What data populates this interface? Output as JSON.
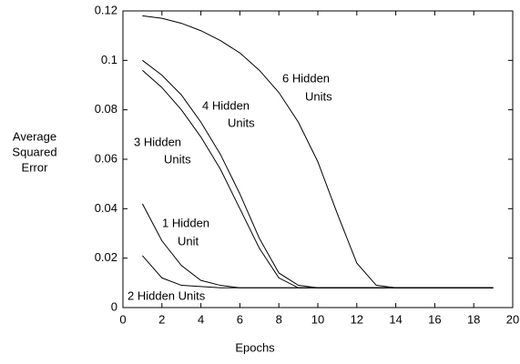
{
  "chart_data": {
    "type": "line",
    "xlabel": "Epochs",
    "ylabel": [
      "Average",
      "Squared",
      "Error"
    ],
    "xlim": [
      0,
      20
    ],
    "ylim": [
      0,
      0.12
    ],
    "xticks": [
      0,
      2,
      4,
      6,
      8,
      10,
      12,
      14,
      16,
      18,
      20
    ],
    "yticks": [
      0,
      0.02,
      0.04,
      0.06,
      0.08,
      0.1,
      0.12
    ],
    "x": [
      1,
      2,
      3,
      4,
      5,
      6,
      7,
      8,
      9,
      10,
      11,
      12,
      13,
      14,
      15,
      16,
      17,
      18,
      19
    ],
    "series": [
      {
        "label": [
          "6 Hidden",
          "Units"
        ],
        "color": "#000000",
        "values": [
          0.118,
          0.117,
          0.115,
          0.112,
          0.108,
          0.103,
          0.096,
          0.087,
          0.075,
          0.059,
          0.038,
          0.018,
          0.009,
          0.008,
          0.008,
          0.008,
          0.008,
          0.008,
          0.008
        ]
      },
      {
        "label": [
          "4 Hidden",
          "Units"
        ],
        "color": "#000000",
        "values": [
          0.1,
          0.094,
          0.086,
          0.075,
          0.062,
          0.046,
          0.028,
          0.014,
          0.009,
          0.008,
          0.008,
          0.008,
          0.008,
          0.008,
          0.008,
          0.008,
          0.008,
          0.008,
          0.008
        ]
      },
      {
        "label": [
          "3 Hidden",
          "Units"
        ],
        "color": "#000000",
        "values": [
          0.096,
          0.089,
          0.08,
          0.069,
          0.056,
          0.04,
          0.024,
          0.012,
          0.008,
          0.008,
          0.008,
          0.008,
          0.008,
          0.008,
          0.008,
          0.008,
          0.008,
          0.008,
          0.008
        ]
      },
      {
        "label": [
          "1 Hidden",
          "Unit"
        ],
        "color": "#000000",
        "values": [
          0.042,
          0.027,
          0.017,
          0.011,
          0.009,
          0.008,
          0.008,
          0.008,
          0.008,
          0.008,
          0.008,
          0.008,
          0.008,
          0.008,
          0.008,
          0.008,
          0.008,
          0.008,
          0.008
        ]
      },
      {
        "label": [
          "2 Hidden Units"
        ],
        "color": "#000000",
        "values": [
          0.021,
          0.012,
          0.009,
          0.0085,
          0.008,
          0.008,
          0.008,
          0.008,
          0.008,
          0.008,
          0.008,
          0.008,
          0.008,
          0.008,
          0.008,
          0.008,
          0.008,
          0.008,
          0.008
        ]
      }
    ]
  }
}
